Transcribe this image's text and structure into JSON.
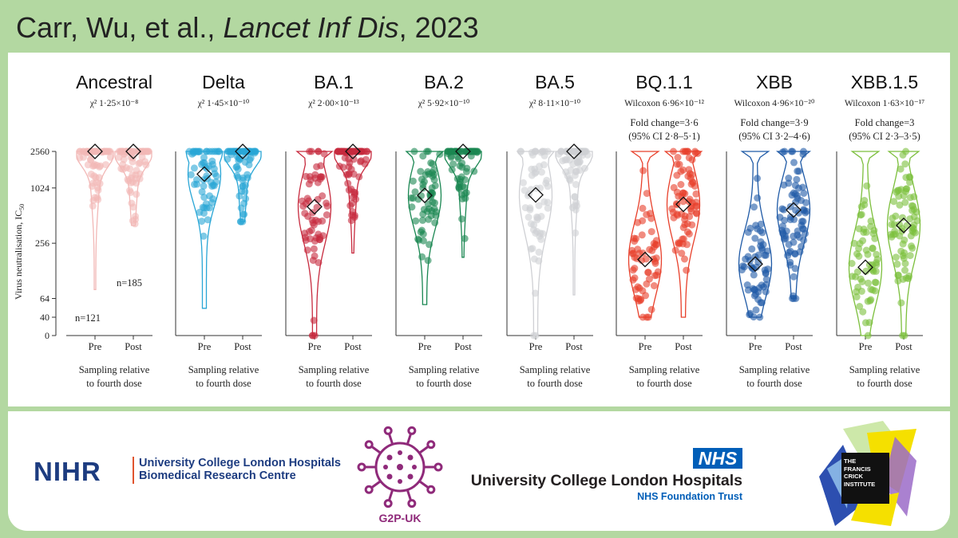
{
  "header": {
    "authors": "Carr, Wu, et al.,",
    "journal": "Lancet Inf Dis",
    "year": ", 2023"
  },
  "chart_data": {
    "type": "violin-scatter",
    "ylabel": "Virus neutralisation, IC",
    "ylabel_sub": "50",
    "yticks": [
      {
        "v": 0,
        "label": "0"
      },
      {
        "v": 40,
        "label": "40"
      },
      {
        "v": 64,
        "label": "64"
      },
      {
        "v": 256,
        "label": "256"
      },
      {
        "v": 1024,
        "label": "1024"
      },
      {
        "v": 2560,
        "label": "2560"
      }
    ],
    "xlabel": "Sampling relative to fourth dose",
    "xlabel_lines": [
      "Sampling relative",
      "to fourth dose"
    ],
    "group_labels": [
      "Pre",
      "Post"
    ],
    "n_labels": {
      "pre": "n=121",
      "post": "n=185"
    },
    "panels": [
      {
        "name": "Ancestral",
        "test": "χ² 1·25×10⁻⁸",
        "color": "#f2b8b6",
        "median_pre": 2560,
        "median_post": 2560,
        "fold": []
      },
      {
        "name": "Delta",
        "test": "χ² 1·45×10⁻¹⁰",
        "color": "#29a6d6",
        "median_pre": 1450,
        "median_post": 2560,
        "fold": []
      },
      {
        "name": "BA.1",
        "test": "χ² 2·00×10⁻¹³",
        "color": "#c72a3e",
        "median_pre": 640,
        "median_post": 2560,
        "fold": []
      },
      {
        "name": "BA.2",
        "test": "χ² 5·92×10⁻¹⁰",
        "color": "#1a8752",
        "median_pre": 850,
        "median_post": 2560,
        "fold": []
      },
      {
        "name": "BA.5",
        "test": "χ² 8·11×10⁻¹⁰",
        "color": "#cfd0d4",
        "median_pre": 860,
        "median_post": 2560,
        "fold": []
      },
      {
        "name": "BQ.1.1",
        "test": "Wilcoxon 6·96×10⁻¹²",
        "color": "#e8402b",
        "median_pre": 170,
        "median_post": 680,
        "fold": [
          "Fold change=3·6",
          "(95% CI 2·8–5·1)"
        ]
      },
      {
        "name": "XBB",
        "test": "Wilcoxon 4·96×10⁻²⁰",
        "color": "#1f5aa6",
        "median_pre": 152,
        "median_post": 590,
        "fold": [
          "Fold change=3·9",
          "(95% CI 3·2–4·6)"
        ]
      },
      {
        "name": "XBB.1.5",
        "test": "Wilcoxon 1·63×10⁻¹⁷",
        "color": "#7cbf3c",
        "median_pre": 140,
        "median_post": 400,
        "fold": [
          "Fold change=3",
          "(95% CI 2·3–3·5)"
        ]
      }
    ]
  },
  "logos": {
    "nihr": "NIHR",
    "nihr_lines": [
      "University College London Hospitals",
      "Biomedical Research Centre"
    ],
    "g2p": "G2P-UK",
    "nhs_badge": "NHS",
    "nhs_name": "University College London Hospitals",
    "nhs_trust": "NHS Foundation Trust",
    "crick_lines": [
      "THE",
      "FRANCIS",
      "CRICK",
      "INSTITUTE"
    ]
  }
}
